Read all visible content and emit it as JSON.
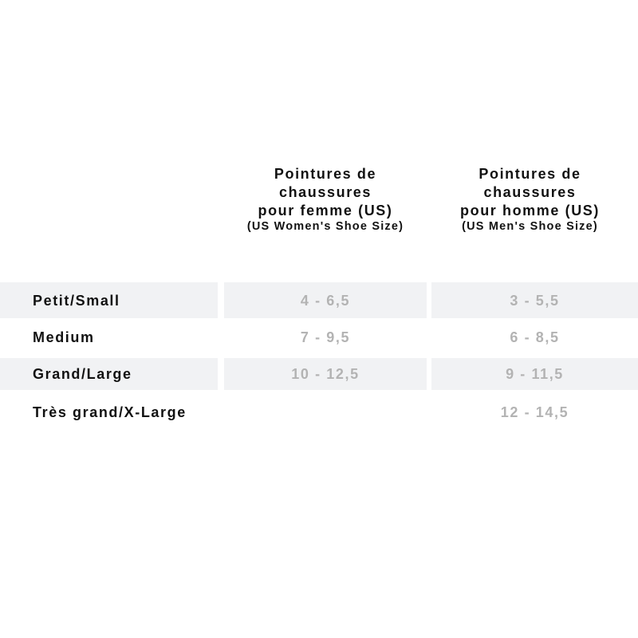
{
  "columns": [
    {
      "lines": [
        "Pointures de",
        "chaussures",
        "pour femme (US)"
      ],
      "subtitle": "(US Women's Shoe Size)"
    },
    {
      "lines": [
        "Pointures de",
        "chaussures",
        "pour homme (US)"
      ],
      "subtitle": "(US Men's Shoe Size)"
    }
  ],
  "rows": [
    {
      "label": "Petit/Small",
      "women": "4 - 6,5",
      "men": "3 - 5,5"
    },
    {
      "label": "Medium",
      "women": "7 - 9,5",
      "men": "6 - 8,5"
    },
    {
      "label": "Grand/Large",
      "women": "10 - 12,5",
      "men": "9 - 11,5"
    },
    {
      "label": "Très grand/X-Large",
      "women": "",
      "men": "12 - 14,5"
    }
  ],
  "colors": {
    "band": "#f1f2f4",
    "value_text": "#b3b3b3",
    "label_text": "#111111"
  }
}
